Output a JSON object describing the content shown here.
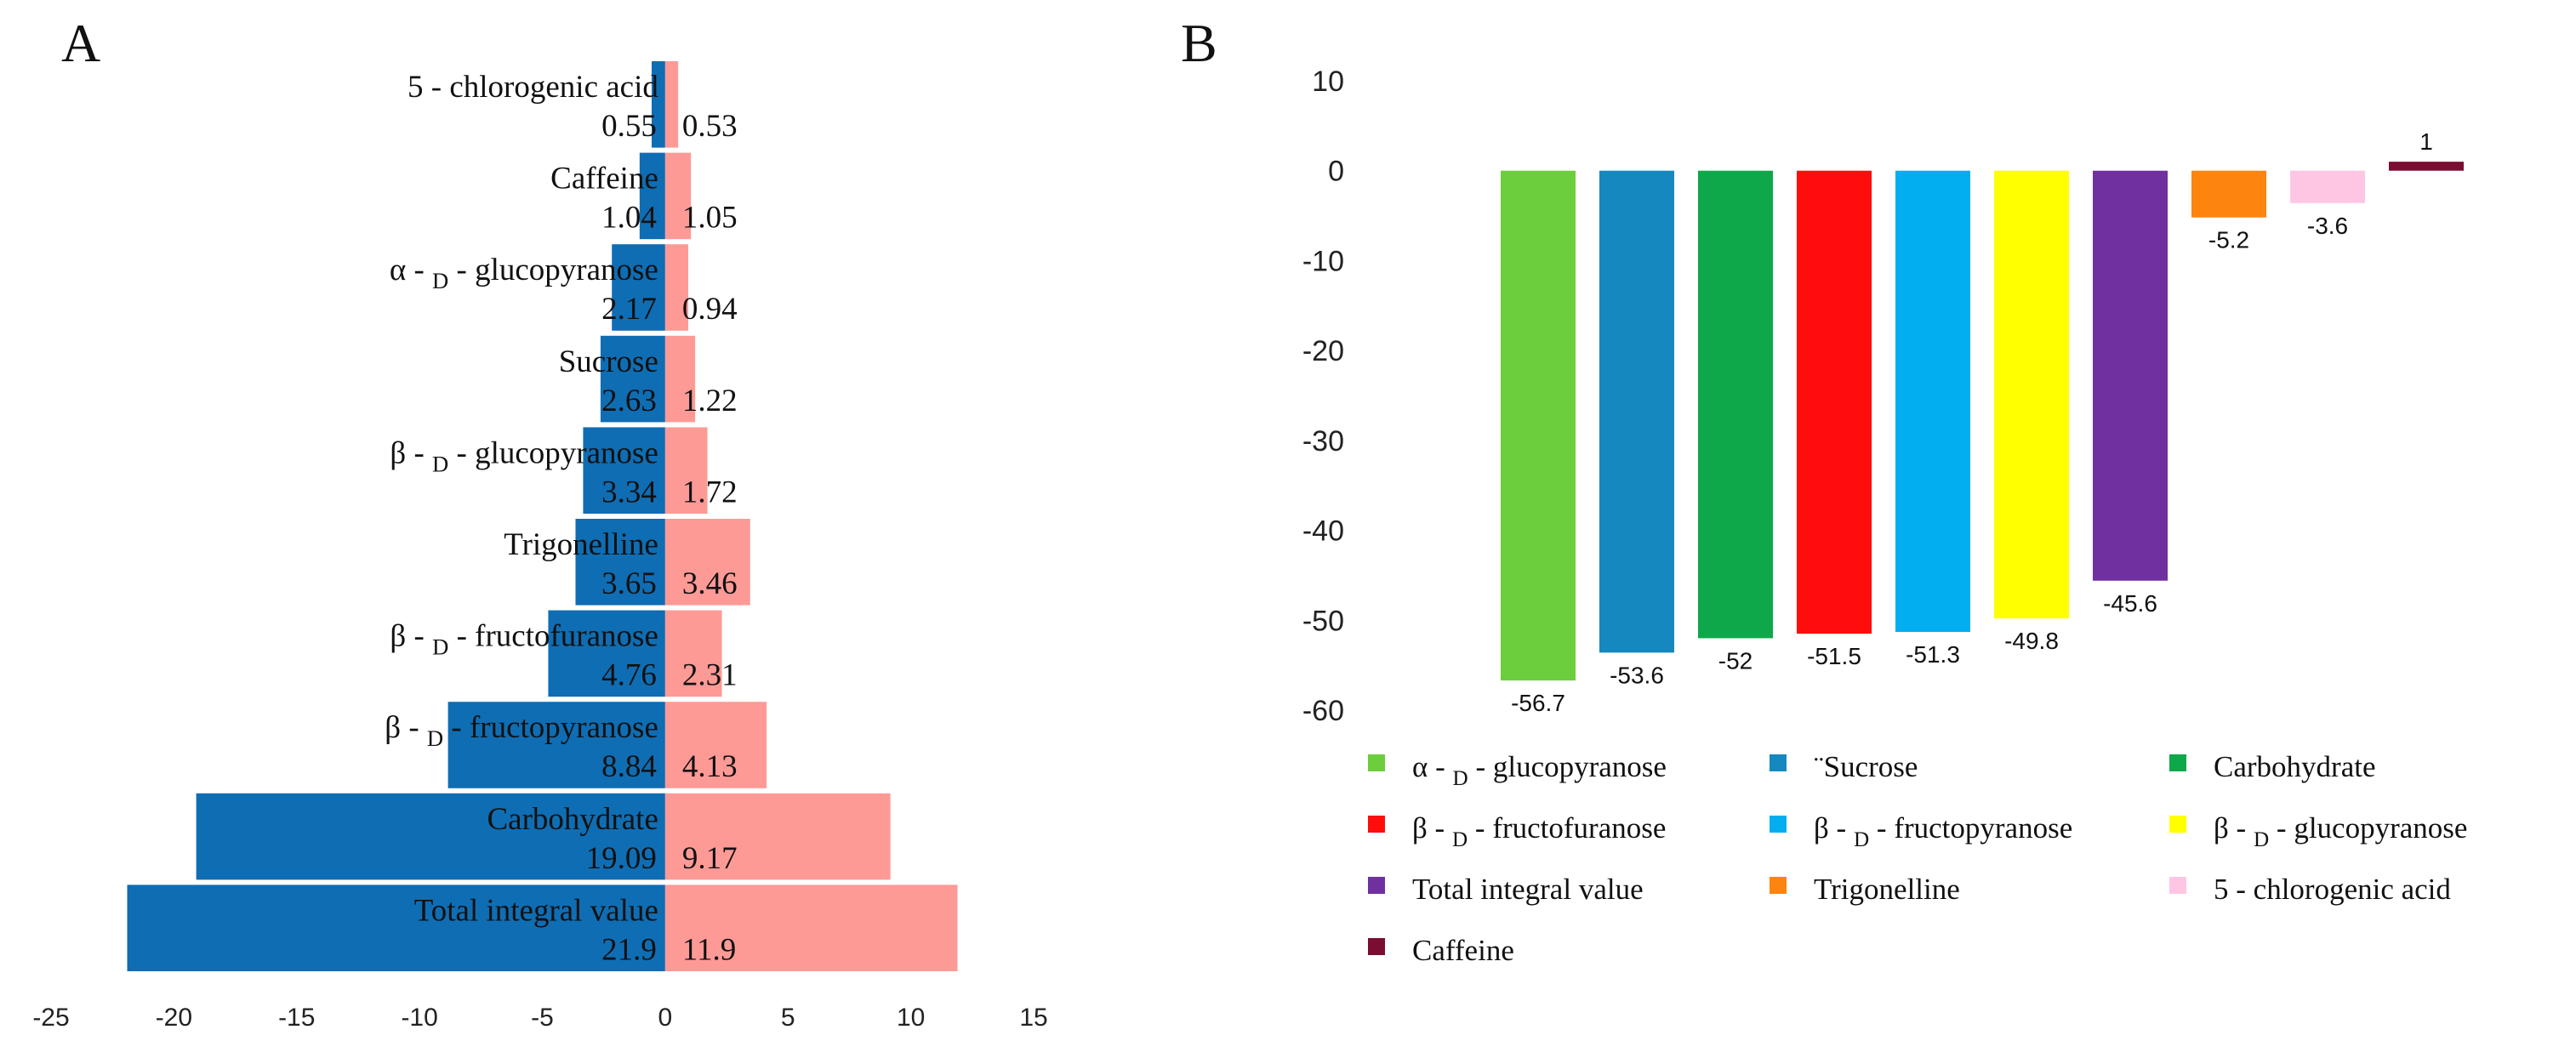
{
  "chart_data": [
    {
      "panel": "A",
      "type": "bar",
      "orientation": "horizontal",
      "title": "",
      "xlabel": "",
      "ylabel": "",
      "xlim": [
        -25,
        15
      ],
      "x_ticks": [
        -25,
        -20,
        -15,
        -10,
        -5,
        0,
        5,
        10,
        15
      ],
      "grid": false,
      "categories": [
        {
          "prefix": "5 - chlorogenic acid",
          "sub": "",
          "suffix": ""
        },
        {
          "prefix": "Caffeine",
          "sub": "",
          "suffix": ""
        },
        {
          "prefix": "α - ",
          "sub": "D",
          "suffix": " - glucopyranose"
        },
        {
          "prefix": "Sucrose",
          "sub": "",
          "suffix": ""
        },
        {
          "prefix": "β - ",
          "sub": "D",
          "suffix": " - glucopyranose"
        },
        {
          "prefix": "Trigonelline",
          "sub": "",
          "suffix": ""
        },
        {
          "prefix": "β - ",
          "sub": "D",
          "suffix": " - fructofuranose"
        },
        {
          "prefix": "β - ",
          "sub": "D",
          "suffix": " - fructopyranose"
        },
        {
          "prefix": "Carbohydrate",
          "sub": "",
          "suffix": ""
        },
        {
          "prefix": "Total integral value",
          "sub": "",
          "suffix": ""
        }
      ],
      "series": [
        {
          "name": "left",
          "color": "#0f6db3",
          "values": [
            -0.55,
            -1.04,
            -2.17,
            -2.63,
            -3.34,
            -3.65,
            -4.76,
            -8.84,
            -19.09,
            -21.9
          ],
          "labels": [
            "0.55",
            "1.04",
            "2.17",
            "2.63",
            "3.34",
            "3.65",
            "4.76",
            "8.84",
            "19.09",
            "21.9"
          ]
        },
        {
          "name": "right",
          "color": "#fd9a96",
          "values": [
            0.53,
            1.05,
            0.94,
            1.22,
            1.72,
            3.46,
            2.31,
            4.13,
            9.17,
            11.9
          ],
          "labels": [
            "0.53",
            "1.05",
            "0.94",
            "1.22",
            "1.72",
            "3.46",
            "2.31",
            "4.13",
            "9.17",
            "11.9"
          ]
        }
      ]
    },
    {
      "panel": "B",
      "type": "bar",
      "orientation": "vertical",
      "title": "",
      "xlabel": "",
      "ylabel": "",
      "ylim": [
        -60,
        10
      ],
      "y_ticks": [
        10,
        0,
        -10,
        -20,
        -30,
        -40,
        -50,
        -60
      ],
      "grid": false,
      "legend_position": "bottom",
      "series": [
        {
          "prefix": "α - ",
          "sub": "D",
          "suffix": " - glucopyranose",
          "value": -56.7,
          "label": "-56.7",
          "color": "#6ccd3d"
        },
        {
          "prefix": "¨Sucrose",
          "sub": "",
          "suffix": "",
          "value": -53.6,
          "label": "-53.6",
          "color": "#1488bf"
        },
        {
          "prefix": "Carbohydrate",
          "sub": "",
          "suffix": "",
          "value": -52,
          "label": "-52",
          "color": "#0ea84b"
        },
        {
          "prefix": "β - ",
          "sub": "D",
          "suffix": " - fructofuranose",
          "value": -51.5,
          "label": "-51.5",
          "color": "#ff0d0d"
        },
        {
          "prefix": "β - ",
          "sub": "D",
          "suffix": " - fructopyranose",
          "value": -51.3,
          "label": "-51.3",
          "color": "#02aeef"
        },
        {
          "prefix": "β - ",
          "sub": "D",
          "suffix": " - glucopyranose",
          "value": -49.8,
          "label": "-49.8",
          "color": "#ffff00"
        },
        {
          "prefix": "Total integral value",
          "sub": "",
          "suffix": "",
          "value": -45.6,
          "label": "-45.6",
          "color": "#7030a0"
        },
        {
          "prefix": "Trigonelline",
          "sub": "",
          "suffix": "",
          "value": -5.2,
          "label": "-5.2",
          "color": "#fd840f"
        },
        {
          "prefix": "5 - chlorogenic acid",
          "sub": "",
          "suffix": "",
          "value": -3.6,
          "label": "-3.6",
          "color": "#ffc6e4"
        },
        {
          "prefix": "Caffeine",
          "sub": "",
          "suffix": "",
          "value": 1,
          "label": "1",
          "color": "#7b0c32"
        }
      ]
    }
  ],
  "panel_labels": {
    "a": "A",
    "b": "B"
  }
}
